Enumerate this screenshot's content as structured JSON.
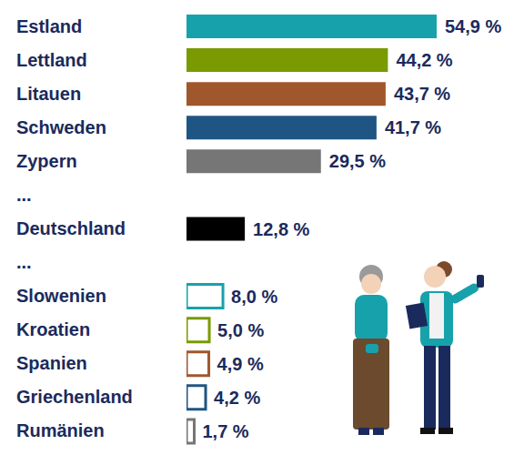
{
  "chart_data": {
    "type": "bar",
    "orientation": "horizontal",
    "categories": [
      "Estland",
      "Lettland",
      "Litauen",
      "Schweden",
      "Zypern",
      "...",
      "Deutschland",
      "...",
      "Slowenien",
      "Kroatien",
      "Spanien",
      "Griechenland",
      "Rumänien"
    ],
    "values": [
      54.9,
      44.2,
      43.7,
      41.7,
      29.5,
      null,
      12.8,
      null,
      8.0,
      5.0,
      4.9,
      4.2,
      1.7
    ],
    "value_labels": [
      "54,9 %",
      "44,2 %",
      "43,7 %",
      "41,7 %",
      "29,5 %",
      null,
      "12,8 %",
      null,
      "8,0 %",
      "5,0 %",
      "4,9 %",
      "4,2 %",
      "1,7 %"
    ],
    "colors": [
      "#17a2ab",
      "#7a9a01",
      "#a0572b",
      "#1f5582",
      "#767676",
      null,
      "#000000",
      null,
      "#17a2ab",
      "#7a9a01",
      "#a0572b",
      "#1f5582",
      "#767676"
    ],
    "data_labels": true,
    "tick_labels": "y"
  }
}
